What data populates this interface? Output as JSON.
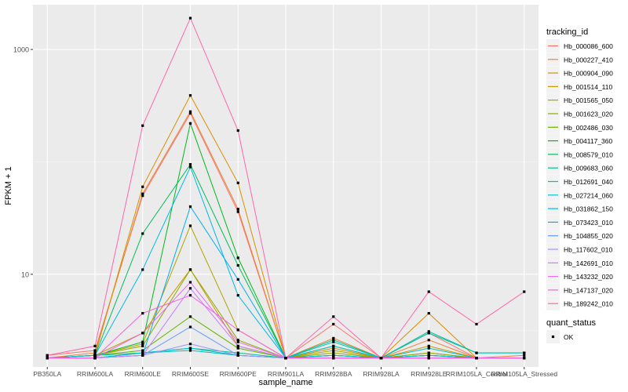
{
  "chart_data": {
    "type": "line",
    "xlabel": "sample_name",
    "ylabel": "FPKM + 1",
    "y_scale": "log10",
    "ylim": [
      1.5,
      2500
    ],
    "y_ticks": [
      10,
      1000
    ],
    "grid": true,
    "legend_position": "right",
    "legend_title": "tracking_id",
    "shape_legend_title": "quant_status",
    "shape_legend_items": [
      "OK"
    ],
    "point_color": "#000000",
    "panel_background": "#ebebeb",
    "categories": [
      "PB350LA",
      "RRIM600LA",
      "RRIM600LE",
      "RRIM600SE",
      "RRIM600PE",
      "RRIM901LA",
      "RRIM928BA",
      "RRIM928LA",
      "RRIM928LE",
      "RRIM105LA_Control",
      "RRIM105LA_Stressed"
    ],
    "series": [
      {
        "name": "Hb_000086_600",
        "color": "#F8766D",
        "values": [
          1.9,
          2.1,
          50,
          270,
          36,
          1.8,
          3.6,
          1.8,
          3.0,
          1.8,
          1.8
        ]
      },
      {
        "name": "Hb_000227_410",
        "color": "#EC8239",
        "values": [
          1.8,
          2.0,
          52,
          280,
          38,
          1.8,
          2.7,
          1.8,
          2.6,
          1.8,
          1.9
        ]
      },
      {
        "name": "Hb_000904_090",
        "color": "#DB8E00",
        "values": [
          1.8,
          1.9,
          60,
          390,
          65,
          1.8,
          2.3,
          1.8,
          4.5,
          1.8,
          1.8
        ]
      },
      {
        "name": "Hb_001514_110",
        "color": "#C79800",
        "values": [
          1.8,
          1.9,
          3.0,
          11,
          2.3,
          1.8,
          2.2,
          1.8,
          2.3,
          1.8,
          1.8
        ]
      },
      {
        "name": "Hb_001565_050",
        "color": "#AEA200",
        "values": [
          1.8,
          1.9,
          2.4,
          27,
          3.2,
          1.8,
          2.1,
          1.8,
          2.0,
          1.8,
          1.8
        ]
      },
      {
        "name": "Hb_001623_020",
        "color": "#8FAA00",
        "values": [
          1.8,
          1.9,
          2.3,
          11,
          2.6,
          1.8,
          2.0,
          1.8,
          2.0,
          1.8,
          1.8
        ]
      },
      {
        "name": "Hb_002486_030",
        "color": "#64B200",
        "values": [
          1.8,
          1.9,
          2.1,
          4.2,
          2.2,
          1.8,
          1.9,
          1.8,
          1.9,
          1.8,
          1.8
        ]
      },
      {
        "name": "Hb_004117_360",
        "color": "#00B81B",
        "values": [
          1.8,
          1.9,
          2.5,
          220,
          14,
          1.8,
          1.9,
          1.8,
          1.9,
          1.8,
          1.8
        ]
      },
      {
        "name": "Hb_008579_010",
        "color": "#00BD5C",
        "values": [
          1.8,
          1.9,
          23,
          95,
          12,
          1.8,
          1.9,
          1.8,
          1.9,
          1.8,
          1.8
        ]
      },
      {
        "name": "Hb_009683_060",
        "color": "#00C08E",
        "values": [
          1.8,
          1.9,
          2.0,
          2.2,
          2.0,
          1.8,
          2.6,
          1.8,
          3.1,
          2.0,
          2.0
        ]
      },
      {
        "name": "Hb_012691_040",
        "color": "#00C1B2",
        "values": [
          1.8,
          1.8,
          2.0,
          2.1,
          1.9,
          1.8,
          2.5,
          1.8,
          3.0,
          2.0,
          2.0
        ]
      },
      {
        "name": "Hb_027214_060",
        "color": "#00BFD0",
        "values": [
          1.8,
          1.8,
          2.0,
          2.2,
          1.9,
          1.8,
          2.3,
          1.8,
          2.2,
          1.8,
          1.8
        ]
      },
      {
        "name": "Hb_031862_150",
        "color": "#00B8E5",
        "values": [
          1.8,
          1.9,
          11,
          90,
          6.5,
          1.8,
          1.9,
          1.8,
          1.9,
          1.8,
          1.8
        ]
      },
      {
        "name": "Hb_073423_010",
        "color": "#00ADF6",
        "values": [
          1.8,
          1.8,
          1.9,
          40,
          9,
          1.8,
          1.8,
          1.8,
          1.8,
          1.8,
          1.8
        ]
      },
      {
        "name": "Hb_104855_020",
        "color": "#619CFF",
        "values": [
          1.8,
          1.8,
          1.9,
          3.4,
          1.9,
          1.8,
          1.8,
          1.8,
          1.8,
          1.8,
          1.8
        ]
      },
      {
        "name": "Hb_117602_010",
        "color": "#9E8EFF",
        "values": [
          1.8,
          1.8,
          1.9,
          2.4,
          1.9,
          1.8,
          1.8,
          1.8,
          1.8,
          1.8,
          1.8
        ]
      },
      {
        "name": "Hb_142691_010",
        "color": "#C77CFF",
        "values": [
          1.8,
          1.8,
          1.9,
          7.5,
          2.3,
          1.8,
          1.8,
          1.8,
          1.8,
          1.8,
          1.8
        ]
      },
      {
        "name": "Hb_143232_020",
        "color": "#E76BF3",
        "values": [
          1.8,
          1.8,
          3.0,
          8.5,
          2.5,
          1.8,
          1.8,
          1.8,
          1.8,
          1.8,
          1.8
        ]
      },
      {
        "name": "Hb_147137_020",
        "color": "#F763E0",
        "values": [
          1.8,
          1.8,
          4.5,
          6.5,
          3.2,
          1.8,
          1.8,
          1.8,
          1.8,
          1.8,
          1.8
        ]
      },
      {
        "name": "Hb_189242_010",
        "color": "#FF65AC",
        "values": [
          1.9,
          2.3,
          210,
          1900,
          190,
          1.8,
          4.2,
          1.8,
          7.0,
          3.6,
          7.0
        ]
      }
    ]
  }
}
